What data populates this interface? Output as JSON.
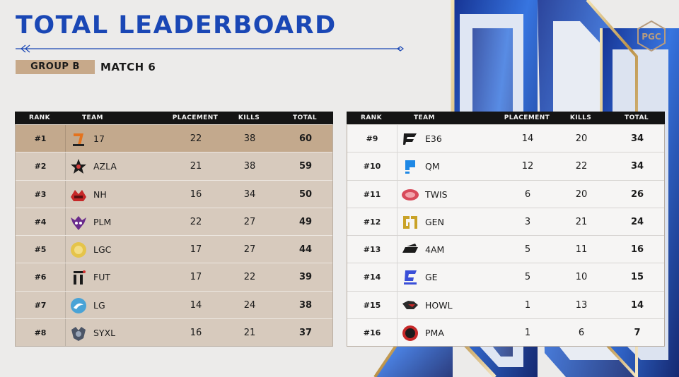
{
  "header": {
    "title": "TOTAL LEADERBOARD",
    "group": "GROUP B",
    "match": "MATCH 6",
    "logo_text": "PGC"
  },
  "columns": {
    "rank": "RANK",
    "team": "TEAM",
    "placement": "PLACEMENT",
    "kills": "KILLS",
    "total": "TOTAL"
  },
  "colors": {
    "title_blue": "#1a47b5",
    "gold_row": "#c3a98d",
    "tan_row": "#d7cabd",
    "header_black": "#141414"
  },
  "left_rows": [
    {
      "rank": "#1",
      "team": "17",
      "placement": "22",
      "kills": "38",
      "total": "60",
      "icon": "17-gaming-logo"
    },
    {
      "rank": "#2",
      "team": "AZLA",
      "placement": "21",
      "kills": "38",
      "total": "59",
      "icon": "azla-star-logo"
    },
    {
      "rank": "#3",
      "team": "NH",
      "placement": "16",
      "kills": "34",
      "total": "50",
      "icon": "nh-logo"
    },
    {
      "rank": "#4",
      "team": "PLM",
      "placement": "22",
      "kills": "27",
      "total": "49",
      "icon": "plm-skull-logo"
    },
    {
      "rank": "#5",
      "team": "LGC",
      "placement": "17",
      "kills": "27",
      "total": "44",
      "icon": "lgc-logo"
    },
    {
      "rank": "#6",
      "team": "FUT",
      "placement": "17",
      "kills": "22",
      "total": "39",
      "icon": "fut-logo"
    },
    {
      "rank": "#7",
      "team": "LG",
      "placement": "14",
      "kills": "24",
      "total": "38",
      "icon": "lg-logo"
    },
    {
      "rank": "#8",
      "team": "SYXL",
      "placement": "16",
      "kills": "21",
      "total": "37",
      "icon": "syxl-logo"
    }
  ],
  "right_rows": [
    {
      "rank": "#9",
      "team": "E36",
      "placement": "14",
      "kills": "20",
      "total": "34",
      "icon": "e36-logo"
    },
    {
      "rank": "#10",
      "team": "QM",
      "placement": "12",
      "kills": "22",
      "total": "34",
      "icon": "qm-logo"
    },
    {
      "rank": "#11",
      "team": "TWIS",
      "placement": "6",
      "kills": "20",
      "total": "26",
      "icon": "twis-logo"
    },
    {
      "rank": "#12",
      "team": "GEN",
      "placement": "3",
      "kills": "21",
      "total": "24",
      "icon": "gen-logo"
    },
    {
      "rank": "#13",
      "team": "4AM",
      "placement": "5",
      "kills": "11",
      "total": "16",
      "icon": "4am-logo"
    },
    {
      "rank": "#14",
      "team": "GE",
      "placement": "5",
      "kills": "10",
      "total": "15",
      "icon": "ge-logo"
    },
    {
      "rank": "#15",
      "team": "HOWL",
      "placement": "1",
      "kills": "13",
      "total": "14",
      "icon": "howl-logo"
    },
    {
      "rank": "#16",
      "team": "PMA",
      "placement": "1",
      "kills": "6",
      "total": "7",
      "icon": "pma-logo"
    }
  ]
}
